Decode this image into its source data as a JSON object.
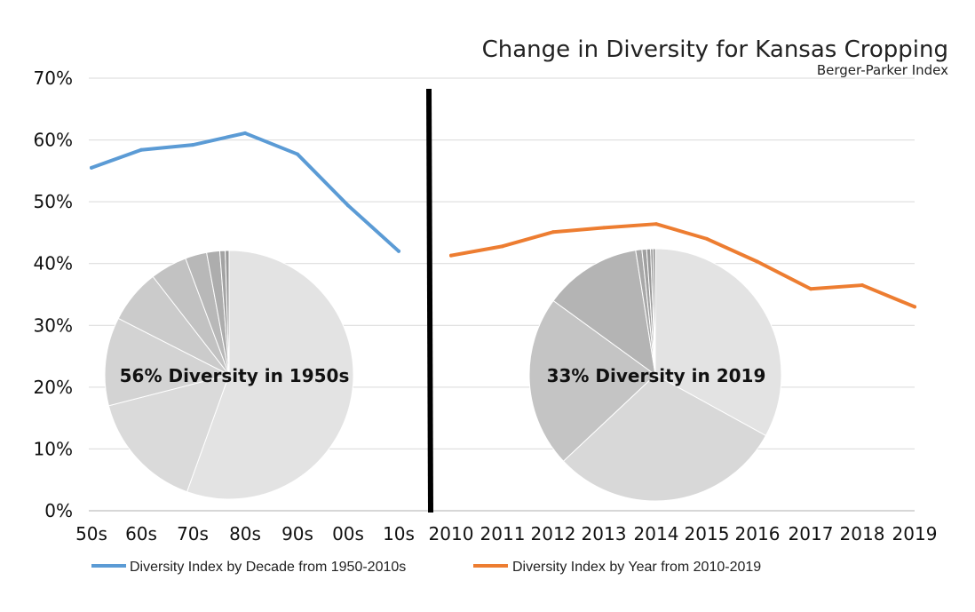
{
  "chart_data": {
    "type": "line",
    "title": "Change in Diversity for Kansas Cropping",
    "subtitle": "Berger-Parker Index",
    "ylim": [
      0,
      70
    ],
    "yticks": [
      "0%",
      "10%",
      "20%",
      "30%",
      "40%",
      "50%",
      "60%",
      "70%"
    ],
    "grid": true,
    "legend_position": "bottom",
    "series": [
      {
        "name": "Diversity Index by Decade from 1950-2010s",
        "color": "#5b9bd5",
        "x": [
          "50s",
          "60s",
          "70s",
          "80s",
          "90s",
          "00s",
          "10s"
        ],
        "values": [
          55.5,
          58.4,
          59.2,
          61.1,
          57.7,
          49.4,
          42.0
        ]
      },
      {
        "name": "Diversity Index by Year from 2010-2019",
        "color": "#ed7d31",
        "x": [
          "2010",
          "2011",
          "2012",
          "2013",
          "2014",
          "2015",
          "2016",
          "2017",
          "2018",
          "2019"
        ],
        "values": [
          41.3,
          42.8,
          45.1,
          45.8,
          46.4,
          44.0,
          40.3,
          35.9,
          36.5,
          33.0
        ]
      }
    ],
    "pies": [
      {
        "label": "56% Diversity in 1950s",
        "slices": [
          55.5,
          15.5,
          11.5,
          7.0,
          4.8,
          2.8,
          1.7,
          0.7,
          0.5
        ],
        "colors": [
          "#e3e3e3",
          "#dadada",
          "#d3d3d3",
          "#cbcbcb",
          "#c2c2c2",
          "#b8b8b8",
          "#adadad",
          "#a3a3a3",
          "#999999"
        ]
      },
      {
        "label": "33% Diversity in 2019",
        "slices": [
          33.0,
          30.0,
          22.0,
          12.5,
          0.8,
          0.6,
          0.5,
          0.3,
          0.3
        ],
        "colors": [
          "#e3e3e3",
          "#d8d8d8",
          "#c4c4c4",
          "#b4b4b4",
          "#a8a8a8",
          "#a0a0a0",
          "#989898",
          "#909090",
          "#888888"
        ]
      }
    ]
  }
}
